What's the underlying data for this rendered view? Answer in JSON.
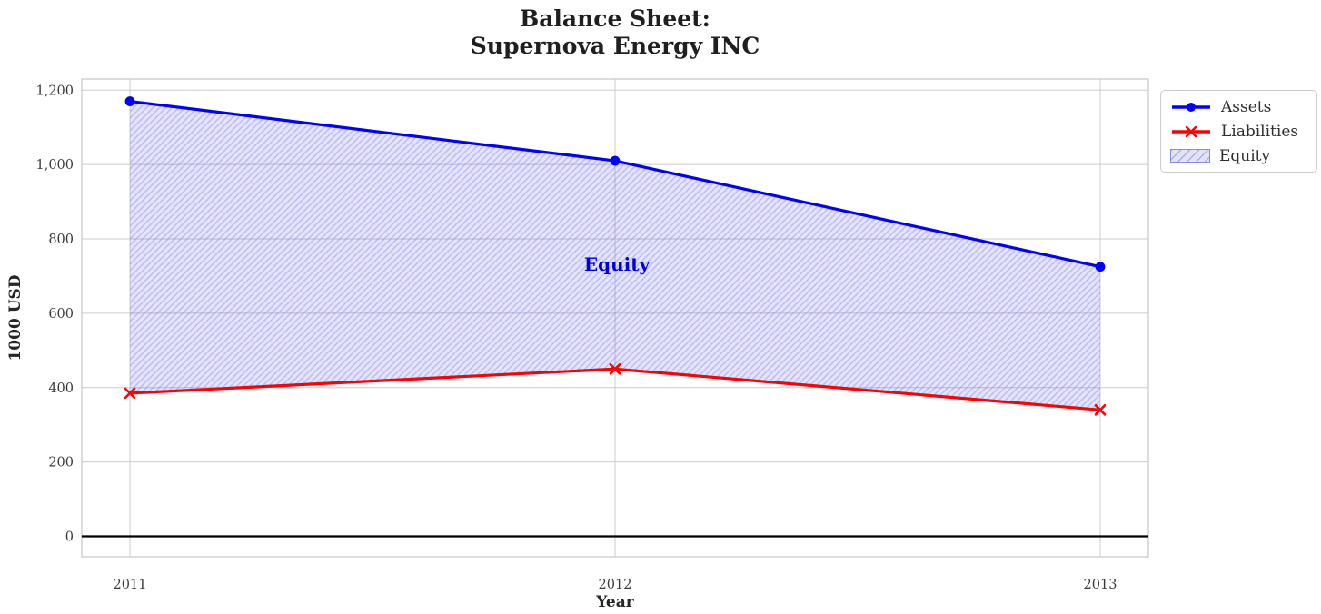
{
  "chart_data": {
    "type": "line",
    "title_lines": [
      "Balance Sheet:",
      "Supernova Energy INC"
    ],
    "x": [
      2011,
      2012,
      2013
    ],
    "xlabel": "Year",
    "ylabel": "1000 USD",
    "series": [
      {
        "name": "Assets",
        "values": [
          1170,
          1010,
          725
        ],
        "color": "#0000ff",
        "marker": "circle"
      },
      {
        "name": "Liabilities",
        "values": [
          385,
          450,
          340
        ],
        "color": "#ff0000",
        "marker": "x"
      }
    ],
    "area": {
      "name": "Equity",
      "label": "Equity",
      "between": [
        "Assets",
        "Liabilities"
      ],
      "values": [
        785,
        560,
        385
      ],
      "fill_color": "#0000ff",
      "fill_opacity": 0.105,
      "hatch": "///"
    },
    "yticks": [
      0,
      200,
      400,
      600,
      800,
      1000,
      1200
    ],
    "ytick_labels": [
      "0",
      "200",
      "400",
      "600",
      "800",
      "1,000",
      "1,200"
    ],
    "ylim": [
      -55,
      1230
    ],
    "grid": true,
    "zero_line": true,
    "legend_position": "upper-right-outside"
  },
  "colors": {
    "assets": "#0000ff",
    "liabilities": "#ff0000",
    "area_fill_solid": "#e2e2f8",
    "hatch_line": "#8a8ae0",
    "grid": "#cccccc",
    "spine": "#c6c6c6",
    "tick_text": "#3a3a3a",
    "title_text": "#1f1f1f",
    "axis_label_text": "#262626",
    "annotation_text": "#0000dd",
    "zero_line": "#000000",
    "legend_border": "#cccccc",
    "legend_text": "#2e2e2e",
    "background": "#ffffff"
  }
}
